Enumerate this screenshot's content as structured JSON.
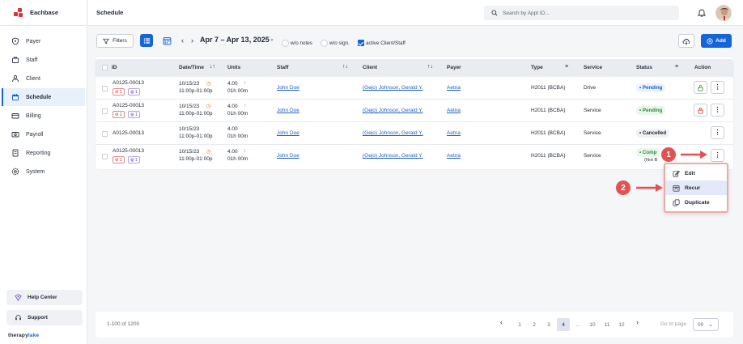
{
  "brand": {
    "name": "Eachbase",
    "footer_pre": "therapy",
    "footer_post": "lake"
  },
  "sidebar": {
    "items": [
      {
        "label": "Payer",
        "icon": "shield-icon"
      },
      {
        "label": "Staff",
        "icon": "staff-icon"
      },
      {
        "label": "Client",
        "icon": "client-icon"
      },
      {
        "label": "Schedule",
        "icon": "calendar-icon",
        "active": true
      },
      {
        "label": "Billing",
        "icon": "billing-icon"
      },
      {
        "label": "Payroll",
        "icon": "payroll-icon"
      },
      {
        "label": "Reporting",
        "icon": "reporting-icon"
      },
      {
        "label": "System",
        "icon": "gear-icon"
      }
    ],
    "help_label": "Help Center",
    "support_label": "Support"
  },
  "header": {
    "title": "Schedule",
    "search_placeholder": "Search by Appt ID..."
  },
  "toolbar": {
    "filters_label": "Filters",
    "date_range": "Apr 7 – Apr 13, 2025",
    "opt_wo_notes": "w/o notes",
    "opt_wo_sign": "w/o sign.",
    "opt_active": "active Client/Staff",
    "add_label": "Add"
  },
  "table": {
    "headers": {
      "id": "ID",
      "datetime": "Date/Time",
      "units": "Units",
      "staff": "Staff",
      "client": "Client",
      "payer": "Payer",
      "type": "Type",
      "service": "Service",
      "status": "Status",
      "action": "Action"
    },
    "rows": [
      {
        "id": "A0125-00013",
        "badge_red": "1",
        "badge_purple": "1",
        "date": "10/15/23",
        "time": "11:00p-01:00p",
        "units": "4.00",
        "duration": "01h 00m",
        "staff": "John Doe",
        "client": "(Gejo) Johnson, Gerald Y.",
        "payer": "Aetna",
        "type": "H2011 (BCBA)",
        "service": "Drive",
        "status": "Pending"
      },
      {
        "id": "A0125-00013",
        "badge_red": "1",
        "badge_purple": "1",
        "date": "10/15/23",
        "time": "11:00p-01:00p",
        "units": "4.00",
        "duration": "01h 00m",
        "staff": "John Doe",
        "client": "(Gejo) Johnson, Gerald Y.",
        "payer": "Aetna",
        "type": "H2011 (BCBA)",
        "service": "Service",
        "status": "Pending"
      },
      {
        "id": "A0125-00013",
        "date": "10/15/23",
        "time": "11:00p-01:00p",
        "units": "4.00",
        "duration": "01h 00m",
        "staff": "John Doe",
        "client": "(Gejo) Johnson, Gerald Y.",
        "payer": "Aetna",
        "type": "H2011 (BCBA)",
        "service": "Service",
        "status": "Cancelled"
      },
      {
        "id": "A0125-00013",
        "badge_red": "1",
        "badge_purple": "1",
        "date": "10/15/23",
        "time": "11:00p-01:00p",
        "units": "4.00",
        "duration": "01h 00m",
        "staff": "John Doe",
        "client": "(Gejo) Johnson, Gerald Y.",
        "payer": "Aetna",
        "type": "H2011 (BCBA)",
        "service": "Service",
        "status": "Comp",
        "status_sub": "(Not B"
      }
    ]
  },
  "menu": {
    "items": [
      "Edit",
      "Recur",
      "Duplicate"
    ]
  },
  "callouts": [
    "1",
    "2"
  ],
  "pagination": {
    "info": "1-100 of 1200",
    "pages": [
      "1",
      "2",
      "3",
      "4",
      "...",
      "10",
      "11",
      "12"
    ],
    "current": "4",
    "goto_label": "Go to page",
    "goto_value": "00"
  },
  "colors": {
    "accent": "#1565d8",
    "danger": "#e25252"
  }
}
